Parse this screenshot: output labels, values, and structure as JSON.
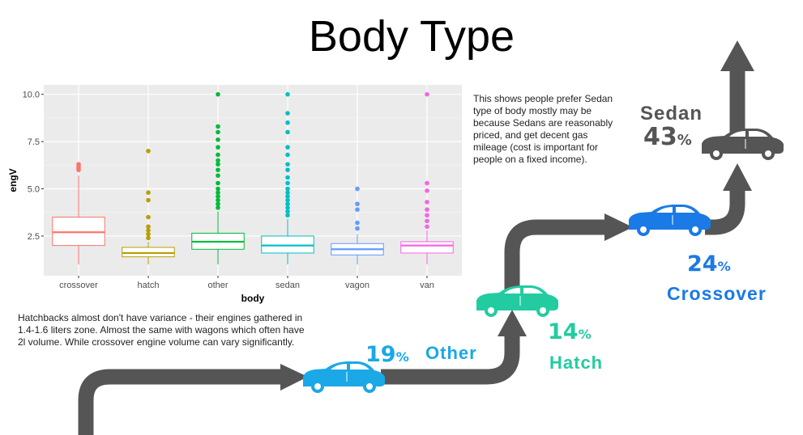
{
  "title": "Body Type",
  "note_right": "This shows people prefer Sedan type of body mostly may be because Sedans are reasonably priced, and get decent gas mileage (cost is important for people on a fixed income).",
  "note_left": "Hatchbacks almost don't have variance - their engines gathered in 1.4-1.6 liters zone. Almost the same with wagons which often have 2l volume. While crossover engine volume can vary significantly.",
  "chart_data": {
    "type": "box",
    "xlabel": "body",
    "ylabel": "engV",
    "ylim": [
      0.4,
      10.5
    ],
    "yticks": [
      2.5,
      5.0,
      7.5,
      10.0
    ],
    "ytick_labels": [
      "2.5",
      "5.0",
      "7.5",
      "10.0"
    ],
    "grid": true,
    "categories": [
      "crossover",
      "hatch",
      "other",
      "sedan",
      "vagon",
      "van"
    ],
    "colors": [
      "#F8766D",
      "#B79F00",
      "#00BA38",
      "#00BFC4",
      "#619CFF",
      "#F564E3"
    ],
    "boxes": [
      {
        "category": "crossover",
        "whisker_low": 1.0,
        "q1": 2.0,
        "median": 2.7,
        "q3": 3.5,
        "whisker_high": 5.7,
        "outliers": [
          6.0,
          6.1,
          6.2,
          6.3
        ]
      },
      {
        "category": "hatch",
        "whisker_low": 1.0,
        "q1": 1.4,
        "median": 1.6,
        "q3": 1.9,
        "whisker_high": 2.2,
        "outliers": [
          2.4,
          2.6,
          2.8,
          3.0,
          3.5,
          4.4,
          4.8,
          7.0
        ]
      },
      {
        "category": "other",
        "whisker_low": 1.0,
        "q1": 1.8,
        "median": 2.2,
        "q3": 2.65,
        "whisker_high": 3.8,
        "outliers": [
          4.0,
          4.2,
          4.4,
          4.6,
          4.8,
          5.0,
          5.3,
          5.7,
          6.0,
          6.3,
          6.5,
          6.8,
          7.2,
          7.6,
          8.0,
          8.3,
          10.0
        ]
      },
      {
        "category": "sedan",
        "whisker_low": 1.0,
        "q1": 1.6,
        "median": 2.0,
        "q3": 2.5,
        "whisker_high": 3.4,
        "outliers": [
          3.6,
          3.8,
          4.0,
          4.2,
          4.4,
          4.6,
          4.8,
          5.0,
          5.3,
          5.6,
          6.0,
          6.3,
          6.8,
          7.2,
          8.0,
          8.5,
          9.0,
          10.0
        ]
      },
      {
        "category": "vagon",
        "whisker_low": 1.0,
        "q1": 1.5,
        "median": 1.8,
        "q3": 2.1,
        "whisker_high": 2.6,
        "outliers": [
          2.9,
          3.2,
          3.9,
          4.2,
          5.0
        ]
      },
      {
        "category": "van",
        "whisker_low": 1.0,
        "q1": 1.6,
        "median": 2.0,
        "q3": 2.2,
        "whisker_high": 2.8,
        "outliers": [
          3.0,
          3.3,
          3.6,
          3.9,
          4.3,
          4.9,
          5.3,
          10.0
        ]
      }
    ]
  },
  "flow": {
    "segments": [
      {
        "label": "Sedan",
        "percent": "43",
        "color": "#555555"
      },
      {
        "label": "Crossover",
        "percent": "24",
        "color": "#1a7ae6"
      },
      {
        "label": "Hatch",
        "percent": "14",
        "color": "#22cca0"
      },
      {
        "label": "Other",
        "percent": "19",
        "color": "#1aa8e6"
      }
    ],
    "percent_sign": "%",
    "arrow_color": "#555555"
  }
}
